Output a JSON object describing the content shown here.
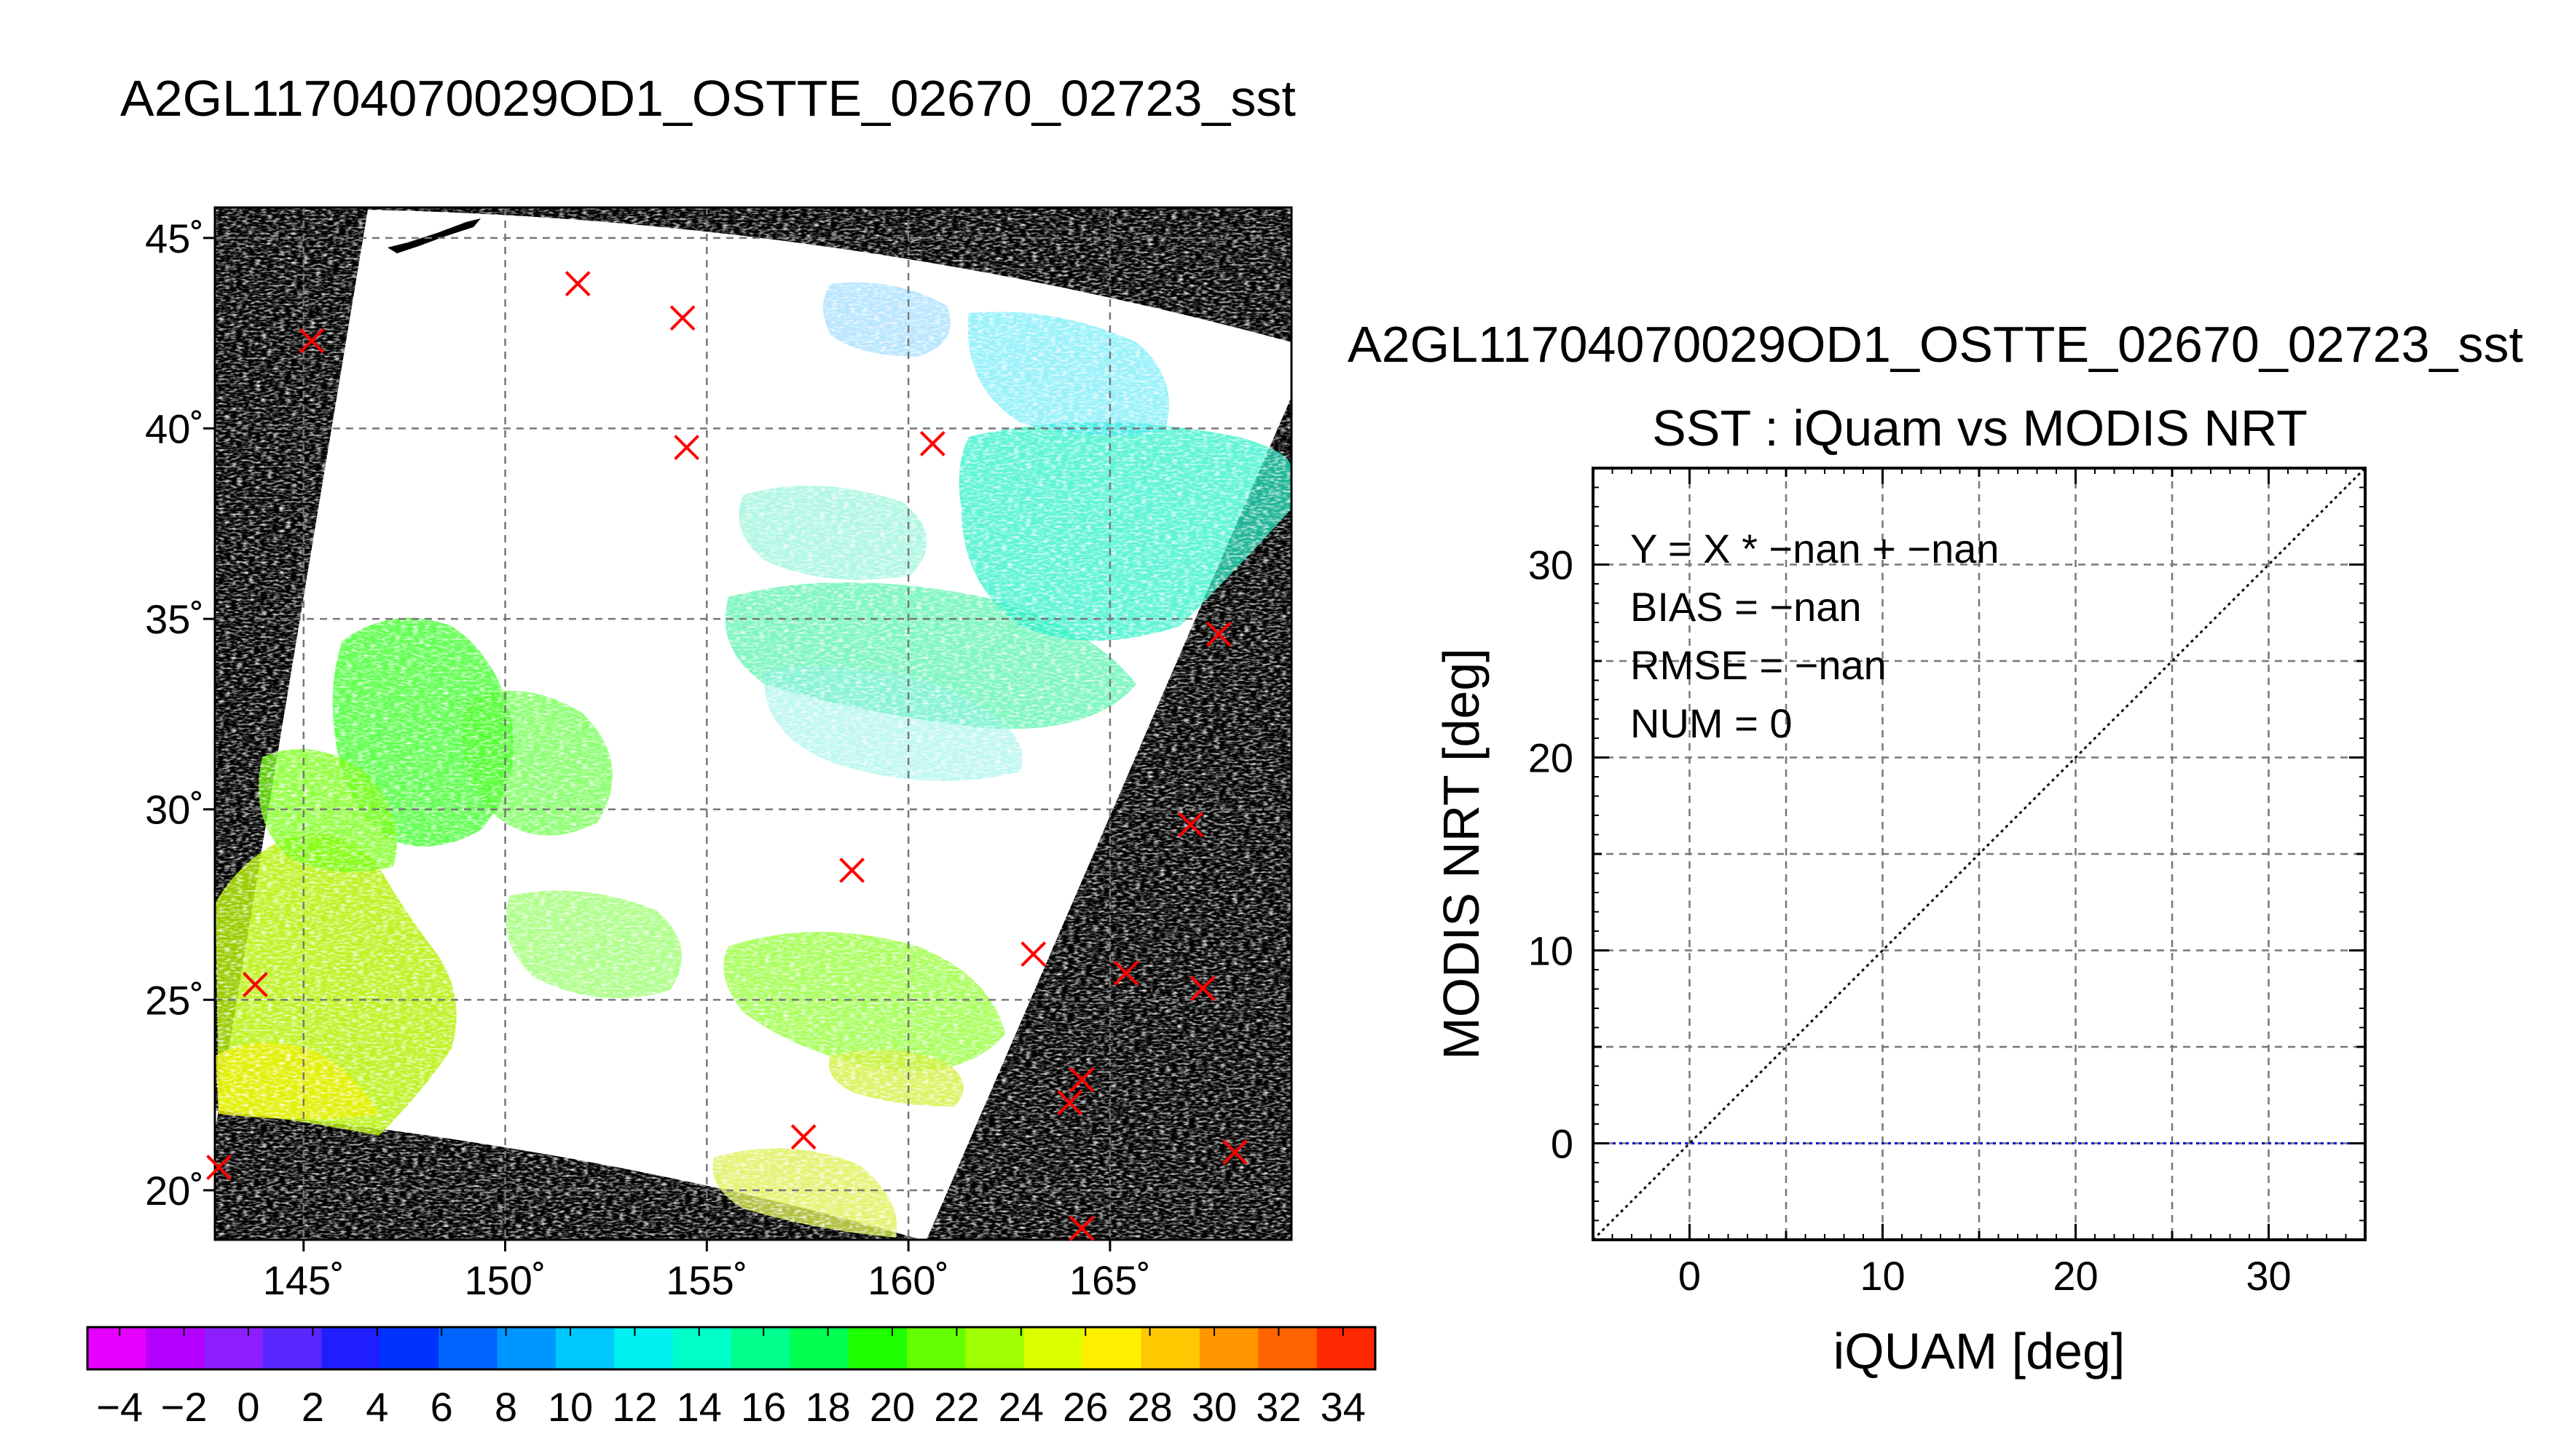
{
  "title": "A2GL11704070029OD1_OSTTE_02670_02723_sst",
  "chart_data": [
    {
      "type": "map",
      "lon_ticks": [
        {
          "value": 145,
          "label": "145˚"
        },
        {
          "value": 150,
          "label": "150˚"
        },
        {
          "value": 155,
          "label": "155˚"
        },
        {
          "value": 160,
          "label": "160˚"
        },
        {
          "value": 165,
          "label": "165˚"
        }
      ],
      "lat_ticks": [
        {
          "value": 20,
          "label": "20˚"
        },
        {
          "value": 25,
          "label": "25˚"
        },
        {
          "value": 30,
          "label": "30˚"
        },
        {
          "value": 35,
          "label": "35˚"
        },
        {
          "value": 40,
          "label": "40˚"
        },
        {
          "value": 45,
          "label": "45˚"
        }
      ],
      "lon_range": [
        142.8,
        169.5
      ],
      "lat_range": [
        18.7,
        45.8
      ],
      "grid": true,
      "matchup_points": [
        {
          "lon": 145.2,
          "lat": 42.3
        },
        {
          "lon": 151.8,
          "lat": 43.8
        },
        {
          "lon": 154.4,
          "lat": 42.9
        },
        {
          "lon": 154.5,
          "lat": 39.5
        },
        {
          "lon": 160.6,
          "lat": 39.6
        },
        {
          "lon": 167.7,
          "lat": 34.6
        },
        {
          "lon": 167.0,
          "lat": 29.6
        },
        {
          "lon": 158.6,
          "lat": 28.4
        },
        {
          "lon": 143.8,
          "lat": 25.4
        },
        {
          "lon": 163.1,
          "lat": 26.2
        },
        {
          "lon": 165.4,
          "lat": 25.7
        },
        {
          "lon": 167.3,
          "lat": 25.3
        },
        {
          "lon": 164.3,
          "lat": 22.9
        },
        {
          "lon": 164.0,
          "lat": 22.3
        },
        {
          "lon": 157.4,
          "lat": 21.4
        },
        {
          "lon": 142.9,
          "lat": 20.6
        },
        {
          "lon": 168.1,
          "lat": 21.0
        },
        {
          "lon": 164.3,
          "lat": 19.0
        }
      ],
      "colorbar": {
        "min": -5,
        "max": 35,
        "step": 2,
        "tick_values": [
          -4,
          -2,
          0,
          2,
          4,
          6,
          8,
          10,
          12,
          14,
          16,
          18,
          20,
          22,
          24,
          26,
          28,
          30,
          32,
          34
        ],
        "tick_labels": [
          "−4",
          "−2",
          "0",
          "2",
          "4",
          "6",
          "8",
          "10",
          "12",
          "14",
          "16",
          "18",
          "20",
          "22",
          "24",
          "26",
          "28",
          "30",
          "32",
          "34"
        ],
        "colors": [
          "#e600ff",
          "#b400ff",
          "#8c1eff",
          "#5a28ff",
          "#1e1eff",
          "#0032ff",
          "#0064ff",
          "#0096ff",
          "#00c8ff",
          "#00f0f0",
          "#00ffc8",
          "#00ff8c",
          "#00ff50",
          "#1eff00",
          "#64ff00",
          "#a0ff00",
          "#dcff00",
          "#fff000",
          "#ffc800",
          "#ff9600",
          "#ff6400",
          "#ff2800"
        ]
      },
      "colors": {
        "swath_nodata": "#ffffff",
        "outside_swath": "#000000",
        "marker": "#ff0000"
      }
    },
    {
      "type": "scatter",
      "title_line1": "A2GL11704070029OD1_OSTTE_02670_02723_sst",
      "title_line2": "SST : iQuam vs MODIS NRT",
      "xlabel": "iQUAM [deg]",
      "ylabel": "MODIS NRT [deg]",
      "xlim": [
        -5,
        35
      ],
      "ylim": [
        -5,
        35
      ],
      "x_ticks": [
        0,
        10,
        20,
        30
      ],
      "y_ticks": [
        0,
        10,
        20,
        30
      ],
      "grid": true,
      "annotations": [
        "Y = X * −nan + −nan",
        "BIAS = −nan",
        "RMSE = −nan",
        "NUM = 0"
      ],
      "series": [],
      "reference_lines": [
        {
          "kind": "identity",
          "color": "#000000",
          "style": "dotted"
        },
        {
          "kind": "horizontal",
          "y": 0,
          "color": "#0000cc",
          "style": "dotted"
        }
      ]
    }
  ]
}
